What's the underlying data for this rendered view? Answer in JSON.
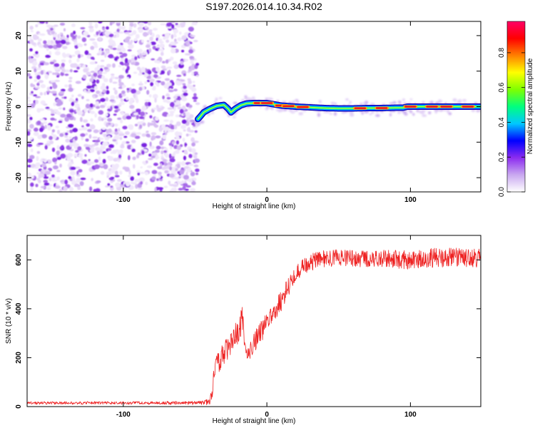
{
  "figure": {
    "title": "S197.2026.014.10.34.R02"
  },
  "chart_data": [
    {
      "type": "heatmap",
      "name": "spectrogram",
      "xlabel": "Height of straight line (km)",
      "ylabel": "Frequency (Hz)",
      "xlim": [
        -167,
        149
      ],
      "ylim": [
        -24,
        24
      ],
      "xticks": [
        -100,
        0,
        100
      ],
      "xtick_labels": [
        "-100",
        "0",
        "100"
      ],
      "yticks": [
        -20,
        -10,
        0,
        10,
        20
      ],
      "ytick_labels": [
        "-20",
        "-10",
        "0",
        "10",
        "20"
      ],
      "noise_region_x": [
        -167,
        -48
      ],
      "signal_track": {
        "x": [
          -48,
          -46,
          -44,
          -40,
          -35,
          -30,
          -27,
          -25,
          -22,
          -18,
          -14,
          -10,
          -5,
          0,
          10,
          20,
          30,
          40,
          50,
          60,
          70,
          80,
          90,
          95,
          98,
          100,
          110,
          120,
          130,
          140,
          149
        ],
        "y": [
          -3.5,
          -2.6,
          -1.6,
          -0.7,
          0.2,
          0.5,
          -0.6,
          -1.6,
          -0.6,
          0.4,
          0.9,
          1.0,
          1.0,
          1.0,
          0.3,
          0.0,
          -0.2,
          -0.4,
          -0.5,
          -0.5,
          -0.4,
          -0.4,
          -0.3,
          -0.3,
          0.0,
          0.0,
          0.0,
          0.0,
          0.0,
          0.0,
          0.0
        ],
        "peak_x": [
          -5,
          0,
          10,
          15,
          25,
          65,
          80,
          100,
          115,
          125,
          140
        ]
      },
      "colorbar": {
        "label": "Normalized spectral amplitude",
        "range": [
          0.0,
          0.98
        ],
        "ticks": [
          0.0,
          0.2,
          0.4,
          0.6,
          0.8
        ],
        "tick_labels": [
          "0.0",
          "0.2",
          "0.4",
          "0.6",
          "0.8"
        ],
        "colors": [
          "#ffffff",
          "#c9a8f0",
          "#8c2cf0",
          "#0000ff",
          "#00c8ff",
          "#00ff7f",
          "#7fff00",
          "#ffff00",
          "#ff8000",
          "#ff0000",
          "#ff0066"
        ]
      }
    },
    {
      "type": "line",
      "name": "snr",
      "xlabel": "Height of straight line (km)",
      "ylabel": "SNR (10 * v/v)",
      "xlim": [
        -167,
        149
      ],
      "ylim": [
        0,
        700
      ],
      "xticks": [
        -100,
        0,
        100
      ],
      "xtick_labels": [
        "-100",
        "0",
        "100"
      ],
      "yticks": [
        0,
        200,
        400,
        600
      ],
      "ytick_labels": [
        "0",
        "200",
        "400",
        "600"
      ],
      "color": "#ee2222",
      "series": [
        {
          "name": "SNR",
          "x": [
            -167,
            -120,
            -80,
            -45,
            -40,
            -38,
            -37,
            -35,
            -30,
            -25,
            -20,
            -17,
            -15,
            -13,
            -10,
            -5,
            0,
            5,
            10,
            15,
            20,
            25,
            30,
            40,
            50,
            60,
            80,
            100,
            120,
            149
          ],
          "mean": [
            15,
            15,
            15,
            15,
            20,
            60,
            120,
            170,
            220,
            260,
            320,
            360,
            240,
            210,
            250,
            300,
            340,
            390,
            430,
            490,
            540,
            570,
            590,
            605,
            610,
            605,
            605,
            600,
            610,
            610
          ],
          "spread": [
            6,
            6,
            6,
            8,
            15,
            30,
            45,
            45,
            50,
            55,
            60,
            60,
            40,
            35,
            40,
            45,
            45,
            45,
            45,
            40,
            35,
            35,
            35,
            35,
            35,
            35,
            35,
            40,
            40,
            40
          ]
        }
      ]
    }
  ]
}
